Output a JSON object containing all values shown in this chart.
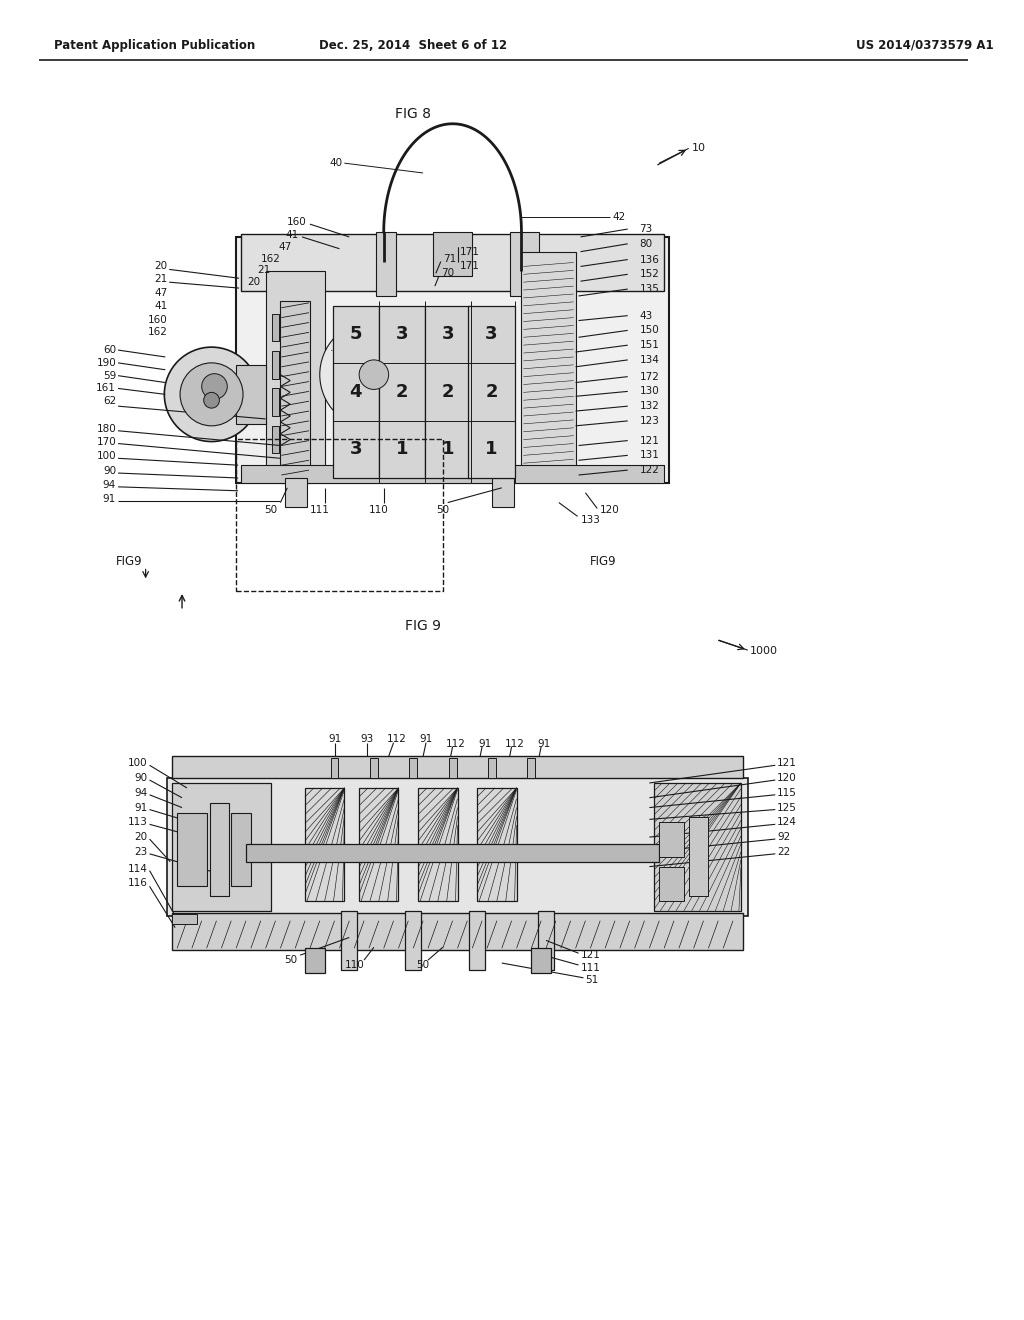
{
  "background_color": "#ffffff",
  "header_left": "Patent Application Publication",
  "header_middle": "Dec. 25, 2014  Sheet 6 of 12",
  "header_right": "US 2014/0373579 A1",
  "fig8_title": "FIG 8",
  "fig9_title": "FIG 9",
  "line_color": "#1a1a1a",
  "text_color": "#1a1a1a",
  "gray1": "#c8c8c8",
  "gray2": "#d8d8d8",
  "gray3": "#e8e8e8",
  "gray4": "#b0b0b0",
  "gray5": "#a0a0a0"
}
